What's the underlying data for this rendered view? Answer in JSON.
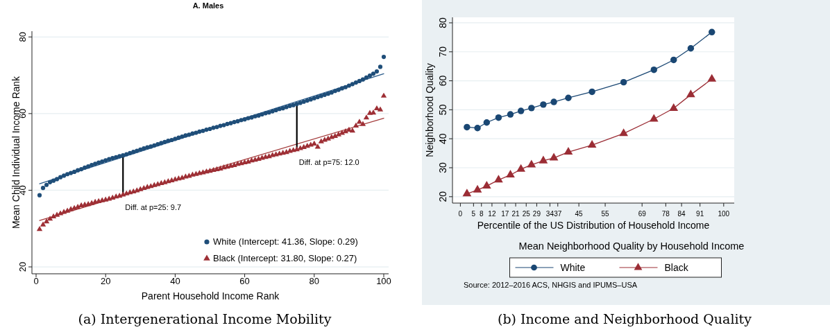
{
  "chart_data": [
    {
      "type": "scatter",
      "title": "A. Males",
      "xlabel": "Parent Household Income Rank",
      "ylabel": "Mean Child Individual Income Rank",
      "xlim": [
        -1.2,
        101.4
      ],
      "ylim": [
        18.2,
        81.5
      ],
      "xticks": [
        0,
        20,
        40,
        60,
        80,
        100
      ],
      "yticks": [
        20,
        40,
        60,
        80
      ],
      "grid": "y",
      "legend": "bottom right",
      "x": [
        1,
        2,
        3,
        4,
        5,
        6,
        7,
        8,
        9,
        10,
        11,
        12,
        13,
        14,
        15,
        16,
        17,
        18,
        19,
        20,
        21,
        22,
        23,
        24,
        25,
        26,
        27,
        28,
        29,
        30,
        31,
        32,
        33,
        34,
        35,
        36,
        37,
        38,
        39,
        40,
        41,
        42,
        43,
        44,
        45,
        46,
        47,
        48,
        49,
        50,
        51,
        52,
        53,
        54,
        55,
        56,
        57,
        58,
        59,
        60,
        61,
        62,
        63,
        64,
        65,
        66,
        67,
        68,
        69,
        70,
        71,
        72,
        73,
        74,
        75,
        76,
        77,
        78,
        79,
        80,
        81,
        82,
        83,
        84,
        85,
        86,
        87,
        88,
        89,
        90,
        91,
        92,
        93,
        94,
        95,
        96,
        97,
        98,
        99,
        100
      ],
      "series": [
        {
          "name": "White (Intercept: 41.36, Slope: 0.29)",
          "color": "#1f4e79",
          "marker": "circle",
          "values": [
            38.7,
            40.6,
            41.4,
            42.1,
            42.5,
            42.9,
            43.4,
            43.8,
            44.2,
            44.5,
            44.8,
            45.2,
            45.5,
            45.9,
            46.2,
            46.6,
            46.9,
            47.2,
            47.5,
            47.8,
            48.1,
            48.4,
            48.6,
            48.9,
            49.1,
            49.4,
            49.7,
            50.0,
            50.3,
            50.6,
            50.9,
            51.2,
            51.4,
            51.7,
            52.0,
            52.3,
            52.6,
            52.9,
            53.1,
            53.4,
            53.7,
            54.0,
            54.3,
            54.5,
            54.8,
            55.0,
            55.3,
            55.5,
            55.8,
            56.0,
            56.3,
            56.5,
            56.8,
            57.0,
            57.3,
            57.5,
            57.8,
            58.0,
            58.3,
            58.5,
            58.8,
            59.0,
            59.3,
            59.5,
            59.8,
            60.1,
            60.3,
            60.6,
            60.9,
            61.2,
            61.4,
            61.7,
            62.0,
            62.2,
            62.5,
            62.8,
            63.1,
            63.4,
            63.7,
            64.0,
            64.3,
            64.6,
            64.9,
            65.2,
            65.5,
            65.9,
            66.2,
            66.6,
            66.9,
            67.3,
            67.7,
            68.1,
            68.5,
            68.9,
            69.4,
            69.9,
            70.4,
            71.0,
            72.2,
            74.8
          ]
        },
        {
          "name": "Black (Intercept: 31.80, Slope: 0.27)",
          "color": "#9e2f35",
          "marker": "triangle",
          "values": [
            29.8,
            31.0,
            31.8,
            32.5,
            33.1,
            33.5,
            33.9,
            34.3,
            34.6,
            35.0,
            35.3,
            35.6,
            36.0,
            36.2,
            36.3,
            36.6,
            36.9,
            37.1,
            37.3,
            37.5,
            37.7,
            38.0,
            38.3,
            38.5,
            38.8,
            39.1,
            39.4,
            39.6,
            39.9,
            40.2,
            40.5,
            40.8,
            41.0,
            41.3,
            41.5,
            41.8,
            42.0,
            42.3,
            42.5,
            42.8,
            43.0,
            43.2,
            43.5,
            43.7,
            44.0,
            44.2,
            44.4,
            44.6,
            44.8,
            45.0,
            45.2,
            45.4,
            45.6,
            45.9,
            46.1,
            46.3,
            46.5,
            46.8,
            47.0,
            47.2,
            47.4,
            47.7,
            47.9,
            48.1,
            48.4,
            48.6,
            48.8,
            49.1,
            49.3,
            49.5,
            49.7,
            49.9,
            50.2,
            50.4,
            50.6,
            50.9,
            51.2,
            51.5,
            51.8,
            52.1,
            51.3,
            52.7,
            53.1,
            53.4,
            53.8,
            54.1,
            54.5,
            54.9,
            55.3,
            55.7,
            55.5,
            56.8,
            57.8,
            57.2,
            58.9,
            60.1,
            60.2,
            61.3,
            61.0,
            64.6
          ]
        },
        {
          "type": "line",
          "color": "#2a5b8a",
          "x": [
            1,
            100
          ],
          "values": [
            41.7,
            70.4
          ]
        },
        {
          "type": "line",
          "color": "#a33a3a",
          "x": [
            1,
            100
          ],
          "values": [
            32.1,
            58.8
          ]
        },
        {
          "type": "line",
          "color": "#000000",
          "x": [
            25,
            25
          ],
          "values": [
            38.8,
            49.1
          ]
        },
        {
          "type": "line",
          "color": "#000000",
          "x": [
            75,
            75
          ],
          "values": [
            50.6,
            62.5
          ]
        }
      ],
      "annotations": [
        {
          "text": "Diff. at p=25:  9.7",
          "x": 25,
          "y": 38.8
        },
        {
          "text": "Diff. at p=75: 12.0",
          "x": 75,
          "y": 50.6
        },
        "(a) Intergenerational Income Mobility"
      ]
    },
    {
      "type": "line",
      "title": "Mean Neighborhood Quality by Household Income",
      "xlabel": "Percentile of the US Distribution of Household Income",
      "ylabel": "Neighborhood Quality",
      "xlim": [
        -3,
        104
      ],
      "ylim": [
        17.8,
        81.9
      ],
      "xticks": [
        0,
        5,
        8,
        12,
        17,
        21,
        25,
        29,
        34,
        37,
        45,
        55,
        69,
        78,
        84,
        91,
        100
      ],
      "yticks": [
        20,
        30,
        40,
        50,
        60,
        70,
        80
      ],
      "grid": "y",
      "legend": "bottom",
      "line_style": "solid",
      "x": [
        2.5,
        6.5,
        10,
        14.5,
        19,
        23,
        27,
        31.5,
        35.5,
        41,
        50,
        62,
        73.5,
        81,
        87.5,
        95.5
      ],
      "series": [
        {
          "name": "White",
          "color": "#1a4773",
          "marker": "circle",
          "values": [
            44,
            43.7,
            45.6,
            47.3,
            48.4,
            49.6,
            50.6,
            51.8,
            52.7,
            54.1,
            56.2,
            59.5,
            63.8,
            67.2,
            71.2,
            76.8
          ]
        },
        {
          "name": "Black",
          "color": "#9b2d35",
          "marker": "triangle",
          "values": [
            21,
            22.3,
            23.7,
            25.8,
            27.5,
            29.5,
            31,
            32.4,
            33.4,
            35.4,
            37.8,
            41.8,
            46.8,
            50.5,
            55.2,
            60.6
          ]
        }
      ],
      "annotations": [
        "Source:  2012–2016 ACS, NHGIS and IPUMS–USA",
        "(b) Income and Neighborhood Quality"
      ]
    }
  ]
}
